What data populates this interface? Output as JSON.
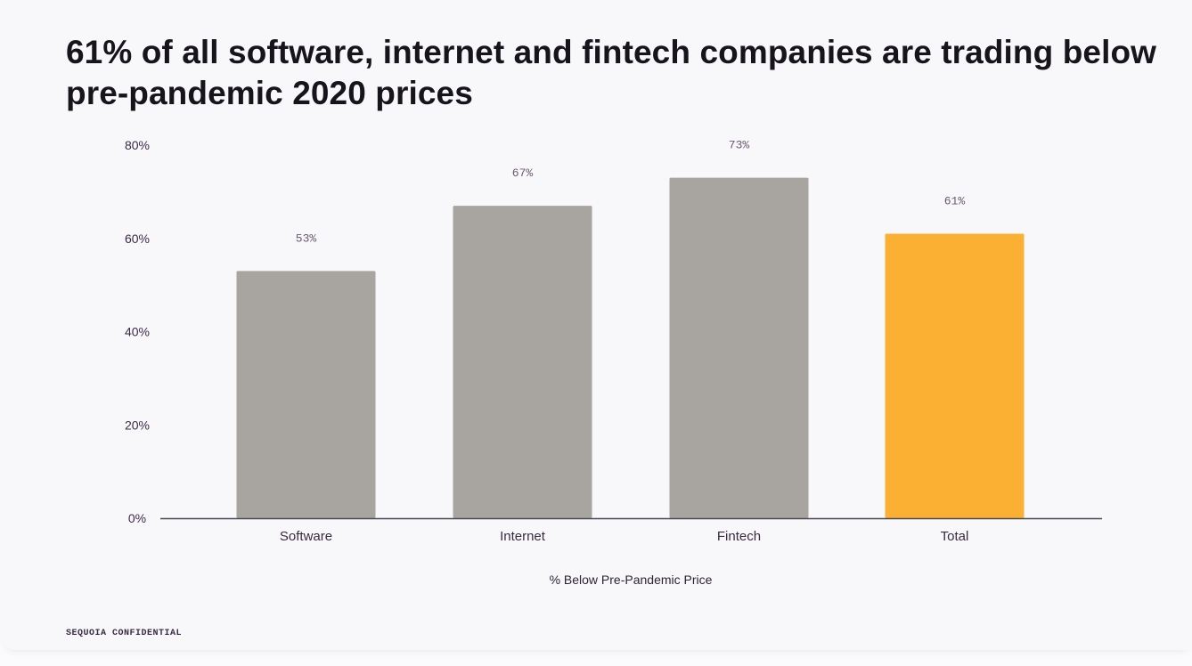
{
  "slide": {
    "title": "61% of all software, internet and fintech companies are trading below pre-pandemic 2020 prices",
    "footer": "SEQUOIA CONFIDENTIAL"
  },
  "chart_data": {
    "type": "bar",
    "title": "61% of all software, internet and fintech companies are trading below pre-pandemic 2020 prices",
    "categories": [
      "Software",
      "Internet",
      "Fintech",
      "Total"
    ],
    "values": [
      53,
      67,
      73,
      61
    ],
    "data_labels": [
      "53%",
      "67%",
      "73%",
      "61%"
    ],
    "xlabel": "% Below Pre-Pandemic Price",
    "ylabel": "",
    "ylim": [
      0,
      80
    ],
    "yticks": [
      0,
      20,
      40,
      60,
      80
    ],
    "ytick_labels": [
      "0%",
      "20%",
      "40%",
      "60%",
      "80%"
    ],
    "colors": [
      "#a8a49f",
      "#a8a49f",
      "#a8a49f",
      "#fbb033"
    ],
    "grid": false,
    "legend": "none"
  }
}
